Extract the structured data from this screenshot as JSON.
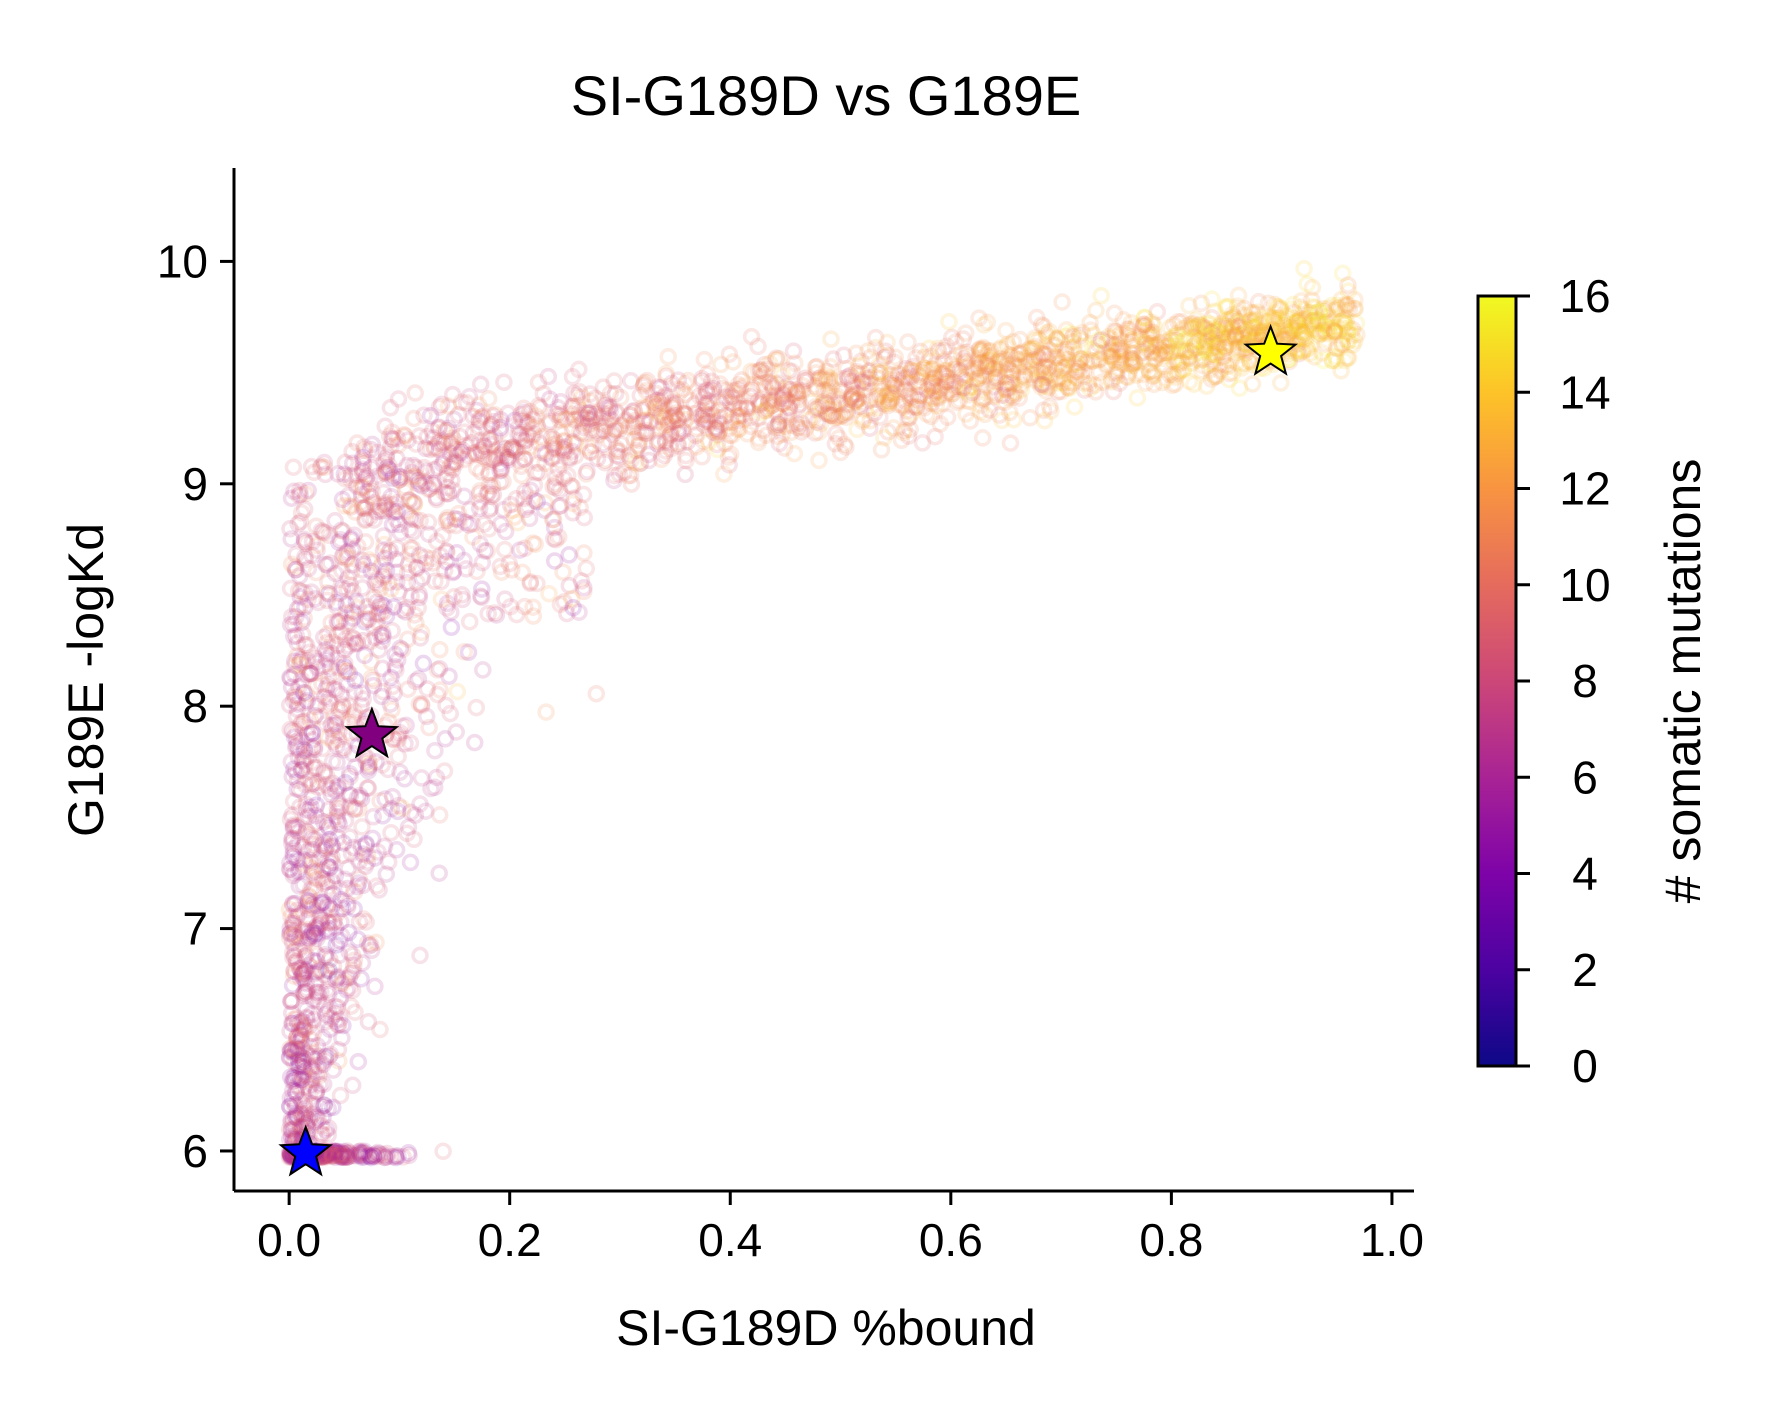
{
  "chart_data": {
    "type": "scatter",
    "title": "SI-G189D vs G189E",
    "xlabel": "SI-G189D %bound",
    "ylabel": "G189E -logKd",
    "xlim": [
      -0.05,
      1.02
    ],
    "ylim": [
      5.82,
      10.42
    ],
    "xticks": [
      "0.0",
      "0.2",
      "0.4",
      "0.6",
      "0.8",
      "1.0"
    ],
    "yticks": [
      "6",
      "7",
      "8",
      "9",
      "10"
    ],
    "colorbar": {
      "label": "# somatic mutations",
      "min": 0,
      "max": 16,
      "ticks": [
        "0",
        "2",
        "4",
        "6",
        "8",
        "10",
        "12",
        "14",
        "16"
      ],
      "colormap": "plasma"
    },
    "grid": false,
    "highlighted_points": [
      {
        "x": 0.015,
        "y": 5.99,
        "mutations": 0,
        "color": "#0000ff",
        "marker": "star"
      },
      {
        "x": 0.075,
        "y": 7.87,
        "mutations": 5,
        "color": "#800080",
        "marker": "star"
      },
      {
        "x": 0.89,
        "y": 9.59,
        "mutations": 16,
        "color": "#ffff00",
        "marker": "star"
      }
    ],
    "cloud_description": "Dense cloud of hollow circle markers (alpha-blended), colored by number of somatic mutations; an L-shaped distribution rising from x≈0, y=6 up to y≈9 near x≈0, then a band rising from (0.1, 9.1) to (0.97, 9.75)."
  }
}
